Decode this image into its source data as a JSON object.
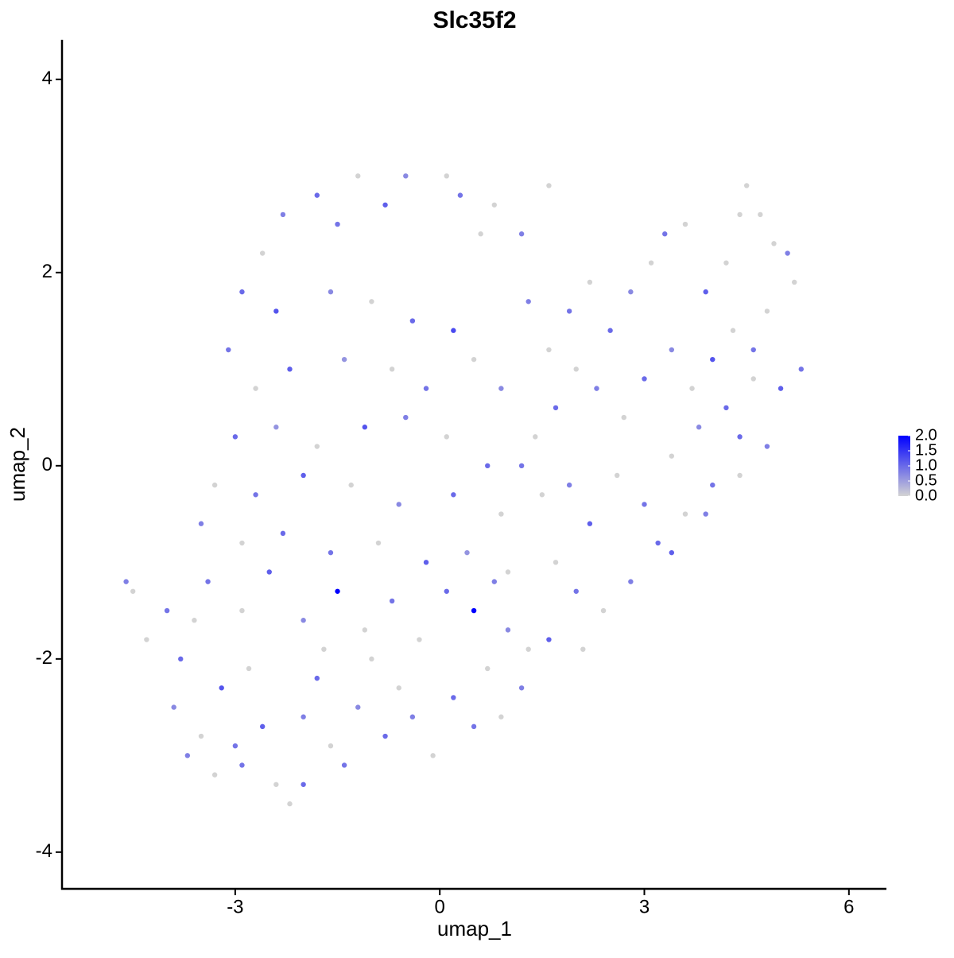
{
  "chart_data": {
    "type": "scatter",
    "title": "Slc35f2",
    "x_label": "umap_1",
    "y_label": "umap_2",
    "xlim": [
      -5.54,
      6.55
    ],
    "ylim": [
      -4.38,
      4.41
    ],
    "xticks": [
      -3,
      0,
      3,
      6
    ],
    "yticks": [
      -4,
      -2,
      0,
      2,
      4
    ],
    "colorscale": [
      "#d3d3d3",
      "#0000ff"
    ],
    "clim": [
      0,
      2.0
    ],
    "cticks": [
      {
        "value": 2.0,
        "label": "2.0"
      },
      {
        "value": 1.5,
        "label": "1.5"
      },
      {
        "value": 1.0,
        "label": "1.0"
      },
      {
        "value": 0.5,
        "label": "0.5"
      },
      {
        "value": 0,
        "label": "0.0"
      }
    ],
    "x": [
      -2.3,
      -1.8,
      -1.2,
      -0.5,
      0.1,
      0.3,
      0.8,
      -0.8,
      -1.5,
      -2.6,
      -2.9,
      -2.4,
      -1.6,
      -1.0,
      -0.4,
      0.2,
      0.6,
      1.2,
      1.6,
      -3.1,
      -2.7,
      -2.2,
      -1.4,
      -0.7,
      -0.2,
      0.5,
      0.9,
      -3.0,
      -2.4,
      -1.8,
      -1.1,
      -0.5,
      0.1,
      0.7,
      -3.3,
      -2.7,
      -2.0,
      -1.3,
      -0.6,
      0.2,
      0.9,
      -3.5,
      -2.9,
      -2.3,
      -1.6,
      -0.9,
      -0.2,
      0.4,
      1.0,
      -4.6,
      -4.5,
      -4.3,
      -4.0,
      -3.8,
      -3.6,
      -3.9,
      -3.5,
      -3.2,
      -3.0,
      -2.8,
      -2.6,
      -2.4,
      -2.2,
      -2.0,
      -1.8,
      -1.6,
      -1.4,
      -1.2,
      -1.0,
      -0.8,
      -0.6,
      -0.4,
      -0.1,
      0.2,
      0.5,
      0.7,
      0.9,
      1.0,
      -3.4,
      -2.9,
      -2.5,
      -2.0,
      -1.5,
      -1.1,
      -0.7,
      -0.3,
      0.1,
      0.5,
      0.8,
      -3.7,
      -3.3,
      -2.9,
      -2.0,
      -1.7,
      1.3,
      1.6,
      1.2,
      1.3,
      1.6,
      1.9,
      2.2,
      2.5,
      2.8,
      3.1,
      3.3,
      3.6,
      3.9,
      4.2,
      4.4,
      4.5,
      4.7,
      4.9,
      5.1,
      5.2,
      4.8,
      4.6,
      4.3,
      4.0,
      3.7,
      3.4,
      3.0,
      2.7,
      2.3,
      2.0,
      1.7,
      1.4,
      1.2,
      1.5,
      1.9,
      2.2,
      2.6,
      3.0,
      3.4,
      3.8,
      4.2,
      4.6,
      5.0,
      5.3,
      4.8,
      4.4,
      4.0,
      3.6,
      3.2,
      2.8,
      2.4,
      2.0,
      1.7,
      2.1,
      3.4,
      3.9,
      4.4
    ],
    "y": [
      2.6,
      2.8,
      3.0,
      3.0,
      3.0,
      2.8,
      2.7,
      2.7,
      2.5,
      2.2,
      1.8,
      1.6,
      1.8,
      1.7,
      1.5,
      1.4,
      2.4,
      2.4,
      2.9,
      1.2,
      0.8,
      1.0,
      1.1,
      1.0,
      0.8,
      1.1,
      0.8,
      0.3,
      0.4,
      0.2,
      0.4,
      0.5,
      0.3,
      0.0,
      -0.2,
      -0.3,
      -0.1,
      -0.2,
      -0.4,
      -0.3,
      -0.5,
      -0.6,
      -0.8,
      -0.7,
      -0.9,
      -0.8,
      -1.0,
      -0.9,
      -1.1,
      -1.2,
      -1.3,
      -1.8,
      -1.5,
      -2.0,
      -1.6,
      -2.5,
      -2.8,
      -2.3,
      -2.9,
      -2.1,
      -2.7,
      -3.3,
      -3.5,
      -2.6,
      -2.2,
      -2.9,
      -3.1,
      -2.5,
      -2.0,
      -2.8,
      -2.3,
      -2.6,
      -3.0,
      -2.4,
      -2.7,
      -2.1,
      -2.6,
      -1.7,
      -1.2,
      -1.5,
      -1.1,
      -1.6,
      -1.3,
      -1.7,
      -1.4,
      -1.8,
      -1.3,
      -1.5,
      -1.2,
      -3.0,
      -3.2,
      -3.1,
      -3.3,
      -1.9,
      -1.9,
      -1.8,
      -2.3,
      1.7,
      1.2,
      1.6,
      1.9,
      1.4,
      1.8,
      2.1,
      2.4,
      2.5,
      1.8,
      2.1,
      2.6,
      2.9,
      2.6,
      2.3,
      2.2,
      1.9,
      1.6,
      1.2,
      1.4,
      1.1,
      0.8,
      1.2,
      0.9,
      0.5,
      0.8,
      1.0,
      0.6,
      0.3,
      0.0,
      -0.3,
      -0.2,
      -0.6,
      -0.1,
      -0.4,
      0.1,
      0.4,
      0.6,
      0.9,
      0.8,
      1.0,
      0.2,
      -0.1,
      -0.2,
      -0.5,
      -0.8,
      -1.2,
      -1.5,
      -1.3,
      -1.0,
      -1.9,
      -0.9,
      -0.5,
      0.3
    ],
    "values": [
      0.8,
      1.0,
      0,
      0.7,
      0,
      0.9,
      0,
      1.1,
      0.9,
      0,
      1.0,
      1.2,
      0.7,
      0,
      1.0,
      1.3,
      0,
      0.8,
      0,
      0.9,
      0,
      1.1,
      0.6,
      0,
      0.9,
      0,
      0.7,
      1.0,
      0.6,
      0,
      1.2,
      0.8,
      0,
      1.0,
      0,
      0.9,
      1.1,
      0,
      0.7,
      1.0,
      0,
      0.8,
      0,
      1.0,
      0.9,
      0,
      1.1,
      0.6,
      0,
      0.8,
      0,
      0,
      0.9,
      1.0,
      0,
      0.7,
      0,
      1.2,
      0.9,
      0,
      1.1,
      0,
      0,
      0.8,
      1.0,
      0,
      0.9,
      0.7,
      0,
      1.0,
      0,
      0.8,
      0,
      1.0,
      0.9,
      0,
      0,
      0.7,
      0.9,
      0,
      1.1,
      0.7,
      2.0,
      0,
      0.9,
      0,
      1.0,
      2.0,
      0.8,
      0.8,
      0,
      0.9,
      1.0,
      0,
      0,
      1.1,
      0.8,
      0.8,
      0,
      0.9,
      0,
      1.0,
      0.7,
      0,
      0.9,
      0,
      1.1,
      0,
      0,
      0,
      0,
      0,
      0.8,
      0,
      0,
      0.9,
      0,
      1.2,
      0,
      0.7,
      1.0,
      0,
      0.8,
      0,
      1.0,
      0,
      0.9,
      0,
      0.8,
      1.1,
      0,
      0.9,
      0,
      0.7,
      1.0,
      0,
      1.1,
      0.9,
      0.8,
      0,
      0.9,
      0,
      1.0,
      0.8,
      0,
      0.9,
      0,
      0,
      1.1,
      0.8,
      1.0
    ]
  }
}
